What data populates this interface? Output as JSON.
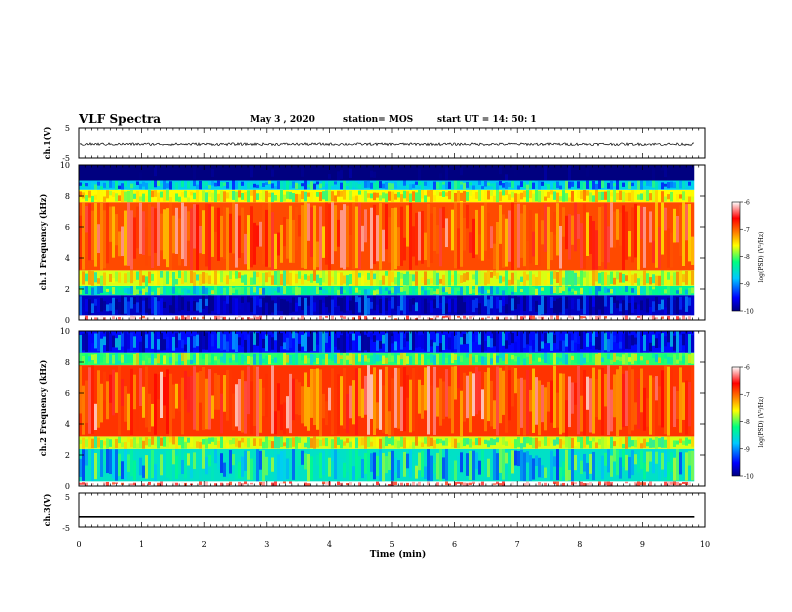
{
  "header": {
    "title": "VLF Spectra",
    "date": "May 3 , 2020",
    "station": "station= MOS",
    "start": "start UT = 14: 50: 1"
  },
  "colors": {
    "colormap": [
      "#000080",
      "#0000ff",
      "#00c8ff",
      "#00ff80",
      "#ffff00",
      "#ff8000",
      "#ff0000",
      "#ffffff"
    ],
    "trace": "#000000",
    "axis": "#000000"
  },
  "chart_data": [
    {
      "type": "line",
      "panel": "ch1-waveform",
      "ylabel": "ch.1(V)",
      "ylim": [
        -5,
        5
      ],
      "yticks": [
        "5",
        "-5"
      ],
      "xlim": [
        0,
        10
      ],
      "series": [
        {
          "description_level": 0,
          "values": [
            0.3,
            -0.2,
            0.4,
            0.1,
            -0.3,
            0.2,
            -0.1,
            0.3,
            -0.2,
            0.1,
            0.2
          ]
        }
      ]
    },
    {
      "type": "heatmap",
      "panel": "ch1-spectrogram",
      "ylabel": "ch.1 Frequency (kHz)",
      "ylim": [
        0,
        10
      ],
      "yticks": [
        "0",
        "2",
        "4",
        "6",
        "8",
        "10"
      ],
      "xlim": [
        0,
        9.83
      ],
      "colorbar": {
        "label": "log(PSD) (V²/Hz)",
        "range": [
          -10,
          -6
        ],
        "ticks": [
          "-6",
          "-7",
          "-8",
          "-9",
          "-10"
        ]
      },
      "bands_khz": [
        {
          "f0": 0,
          "f1": 0.3,
          "level": -6.0
        },
        {
          "f0": 0.3,
          "f1": 1.6,
          "level": -9.7
        },
        {
          "f0": 1.6,
          "f1": 2.2,
          "level": -8.4
        },
        {
          "f0": 2.2,
          "f1": 3.2,
          "level": -7.8
        },
        {
          "f0": 3.2,
          "f1": 7.6,
          "level": -6.9
        },
        {
          "f0": 7.6,
          "f1": 8.4,
          "level": -7.7
        },
        {
          "f0": 8.4,
          "f1": 9.0,
          "level": -8.8
        },
        {
          "f0": 9.0,
          "f1": 10,
          "level": -10.6
        }
      ]
    },
    {
      "type": "heatmap",
      "panel": "ch2-spectrogram",
      "ylabel": "ch.2 Frequency (kHz)",
      "ylim": [
        0,
        10
      ],
      "yticks": [
        "0",
        "2",
        "4",
        "6",
        "8",
        "10"
      ],
      "xlim": [
        0,
        9.83
      ],
      "colorbar": {
        "label": "log(PSD) (V²/Hz)",
        "range": [
          -10,
          -6
        ],
        "ticks": [
          "-6",
          "-7",
          "-8",
          "-9",
          "-10"
        ]
      },
      "bands_khz": [
        {
          "f0": 0,
          "f1": 0.3,
          "level": -6.0
        },
        {
          "f0": 0.3,
          "f1": 2.4,
          "level": -8.6
        },
        {
          "f0": 2.4,
          "f1": 3.2,
          "level": -7.8
        },
        {
          "f0": 3.2,
          "f1": 7.8,
          "level": -6.8
        },
        {
          "f0": 7.8,
          "f1": 8.6,
          "level": -8.2
        },
        {
          "f0": 8.6,
          "f1": 10,
          "level": -9.4
        }
      ]
    },
    {
      "type": "line",
      "panel": "ch3-waveform",
      "ylabel": "ch.3(V)",
      "ylim": [
        -5,
        5
      ],
      "yticks": [
        "5",
        "-5"
      ],
      "xlim": [
        0,
        10
      ],
      "xlabel": "Time (min)",
      "xticks": [
        "0",
        "1",
        "2",
        "3",
        "4",
        "5",
        "6",
        "7",
        "8",
        "9",
        "10"
      ],
      "series": [
        {
          "description_level": -2,
          "values": [
            -2,
            -2,
            -2,
            -2,
            -2,
            -2,
            -2,
            -2,
            -2,
            -2,
            -2
          ]
        }
      ]
    }
  ]
}
